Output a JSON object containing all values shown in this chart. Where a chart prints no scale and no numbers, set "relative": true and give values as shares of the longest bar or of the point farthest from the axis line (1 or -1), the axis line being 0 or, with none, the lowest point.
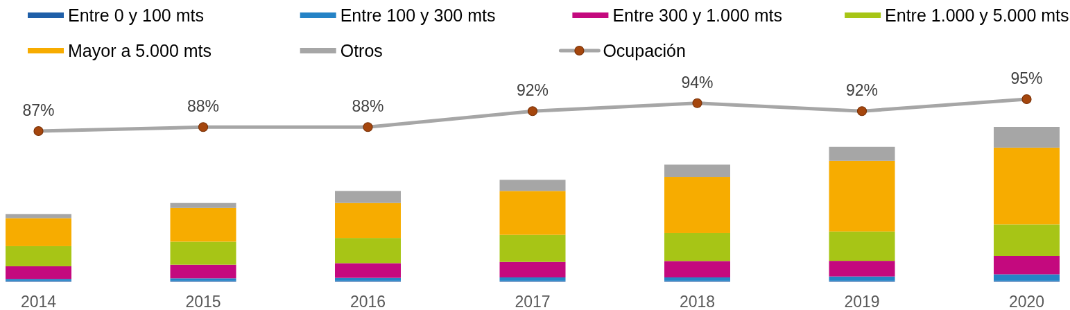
{
  "chart_data": [
    {
      "type": "bar",
      "stacked": true,
      "relative": true,
      "legend": "top",
      "tick_labels": "x",
      "categories": [
        "2014",
        "2015",
        "2016",
        "2017",
        "2018",
        "2019",
        "2020"
      ],
      "series": [
        {
          "name": "Entre 0 y 100 mts",
          "color": "#1f5fa8",
          "values": [
            0.005,
            0.005,
            0.005,
            0.005,
            0.005,
            0.005,
            0.005
          ]
        },
        {
          "name": "Entre 100 y 300 mts",
          "color": "#2583c6",
          "values": [
            0.012,
            0.016,
            0.019,
            0.022,
            0.022,
            0.028,
            0.042
          ]
        },
        {
          "name": "Entre 300 y 1.000 mts",
          "color": "#c4097e",
          "values": [
            0.082,
            0.088,
            0.095,
            0.1,
            0.106,
            0.101,
            0.119
          ]
        },
        {
          "name": "Entre 1.000 y 5.000 mts",
          "color": "#a7c516",
          "values": [
            0.13,
            0.149,
            0.163,
            0.175,
            0.181,
            0.19,
            0.204
          ]
        },
        {
          "name": "Mayor a 5.000 mts",
          "color": "#f7ac00",
          "values": [
            0.181,
            0.218,
            0.226,
            0.284,
            0.363,
            0.457,
            0.496
          ]
        },
        {
          "name": "Otros",
          "color": "#a6a6a6",
          "values": [
            0.026,
            0.032,
            0.078,
            0.072,
            0.079,
            0.09,
            0.134
          ]
        }
      ]
    },
    {
      "type": "line",
      "legend": "top",
      "marker": "circle",
      "categories": [
        null,
        null,
        null,
        null,
        null,
        null,
        null
      ],
      "series": [
        {
          "name": "Ocupación",
          "color": "#a6a6a6",
          "values": [
            87,
            88,
            88,
            92,
            94,
            92,
            95
          ],
          "value_labels": [
            "87%",
            "88%",
            "88%",
            "92%",
            "94%",
            "92%",
            "95%"
          ]
        }
      ]
    }
  ]
}
